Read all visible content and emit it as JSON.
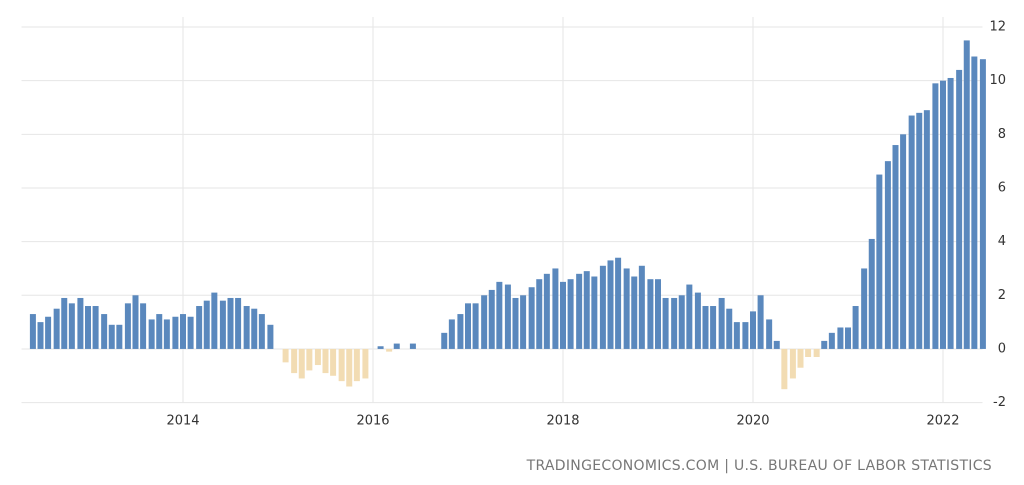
{
  "chart_data": {
    "type": "bar",
    "source": "TRADINGECONOMICS.COM | U.S. BUREAU OF LABOR STATISTICS",
    "color": "#5a88bd",
    "negative_color": "#f2dcb3",
    "grid": true,
    "xlim": [
      2012.3,
      2022.5
    ],
    "xticks": [
      2014,
      2016,
      2018,
      2020,
      2022
    ],
    "ylim": [
      -2,
      12
    ],
    "yticks": [
      -2,
      0,
      2,
      4,
      6,
      8,
      10,
      12
    ],
    "x": [
      2012.42,
      2012.5,
      2012.58,
      2012.67,
      2012.75,
      2012.83,
      2012.92,
      2013.0,
      2013.08,
      2013.17,
      2013.25,
      2013.33,
      2013.42,
      2013.5,
      2013.58,
      2013.67,
      2013.75,
      2013.83,
      2013.92,
      2014.0,
      2014.08,
      2014.17,
      2014.25,
      2014.33,
      2014.42,
      2014.5,
      2014.58,
      2014.67,
      2014.75,
      2014.83,
      2014.92,
      2015.0,
      2015.08,
      2015.17,
      2015.25,
      2015.33,
      2015.42,
      2015.5,
      2015.58,
      2015.67,
      2015.75,
      2015.83,
      2015.92,
      2016.0,
      2016.08,
      2016.17,
      2016.25,
      2016.33,
      2016.42,
      2016.5,
      2016.58,
      2016.67,
      2016.75,
      2016.83,
      2016.92,
      2017.0,
      2017.08,
      2017.17,
      2017.25,
      2017.33,
      2017.42,
      2017.5,
      2017.58,
      2017.67,
      2017.75,
      2017.83,
      2017.92,
      2018.0,
      2018.08,
      2018.17,
      2018.25,
      2018.33,
      2018.42,
      2018.5,
      2018.58,
      2018.67,
      2018.75,
      2018.83,
      2018.92,
      2019.0,
      2019.08,
      2019.17,
      2019.25,
      2019.33,
      2019.42,
      2019.5,
      2019.58,
      2019.67,
      2019.75,
      2019.83,
      2019.92,
      2020.0,
      2020.08,
      2020.17,
      2020.25,
      2020.33,
      2020.42,
      2020.5,
      2020.58,
      2020.67,
      2020.75,
      2020.83,
      2020.92,
      2021.0,
      2021.08,
      2021.17,
      2021.25,
      2021.33,
      2021.42,
      2021.5,
      2021.58,
      2021.67,
      2021.75,
      2021.83,
      2021.92,
      2022.0,
      2022.08,
      2022.17,
      2022.25,
      2022.33,
      2022.42
    ],
    "values": [
      1.3,
      1.0,
      1.2,
      1.5,
      1.9,
      1.7,
      1.9,
      1.6,
      1.6,
      1.3,
      0.9,
      0.9,
      1.7,
      2.0,
      1.7,
      1.1,
      1.3,
      1.1,
      1.2,
      1.3,
      1.2,
      1.6,
      1.8,
      2.1,
      1.8,
      1.9,
      1.9,
      1.6,
      1.5,
      1.3,
      0.9,
      0,
      -0.5,
      -0.9,
      -1.1,
      -0.8,
      -0.6,
      -0.9,
      -1.0,
      -1.2,
      -1.4,
      -1.2,
      -1.1,
      0,
      0.1,
      -0.1,
      0.2,
      0,
      0.2,
      0,
      0,
      0,
      0.6,
      1.1,
      1.3,
      1.7,
      1.7,
      2.0,
      2.2,
      2.5,
      2.4,
      1.9,
      2.0,
      2.3,
      2.6,
      2.8,
      3.0,
      2.5,
      2.6,
      2.8,
      2.9,
      2.7,
      3.1,
      3.3,
      3.4,
      3.0,
      2.7,
      3.1,
      2.6,
      2.6,
      1.9,
      1.9,
      2.0,
      2.4,
      2.1,
      1.6,
      1.6,
      1.9,
      1.5,
      1.0,
      1.0,
      1.4,
      2.0,
      1.1,
      0.3,
      -1.5,
      -1.1,
      -0.7,
      -0.3,
      -0.3,
      0.3,
      0.6,
      0.8,
      0.8,
      1.6,
      3.0,
      4.1,
      6.5,
      7.0,
      7.6,
      8.0,
      8.7,
      8.8,
      8.9,
      9.9,
      10.0,
      10.1,
      10.4,
      11.5,
      10.9,
      10.8
    ]
  }
}
